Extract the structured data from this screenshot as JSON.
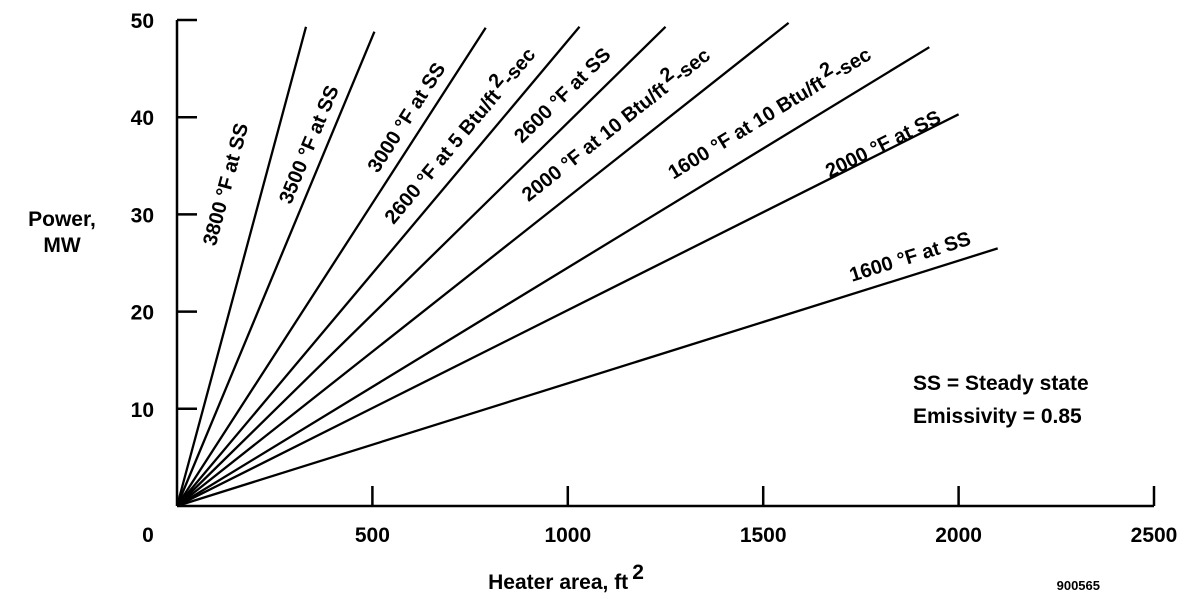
{
  "chart_data": {
    "type": "line",
    "xlabel": "Heater area, ft",
    "xlabel_sup": "2",
    "ylabel": [
      "Power,",
      "MW"
    ],
    "xlim": [
      0,
      2500
    ],
    "ylim": [
      0,
      50
    ],
    "x_ticks": [
      0,
      500,
      1000,
      1500,
      2000,
      2500
    ],
    "x_tick_labels": [
      "0",
      "500",
      "1000",
      "1500",
      "2000",
      "2500"
    ],
    "y_ticks": [
      10,
      20,
      30,
      40,
      50
    ],
    "y_tick_labels": [
      "10",
      "20",
      "30",
      "40",
      "50"
    ],
    "grid": false,
    "series": [
      {
        "name": "3800 °F at SS",
        "label_parts": [
          "3800 °F at SS"
        ],
        "x": [
          0,
          330
        ],
        "y": [
          0,
          49.3
        ]
      },
      {
        "name": "3500 °F at SS",
        "label_parts": [
          "3500 °F at SS"
        ],
        "x": [
          0,
          505
        ],
        "y": [
          0,
          48.8
        ]
      },
      {
        "name": "3000 °F at SS",
        "label_parts": [
          "3000 °F at SS"
        ],
        "x": [
          0,
          790
        ],
        "y": [
          0,
          49.2
        ]
      },
      {
        "name": "2600 °F at 5 Btu/ft2-sec",
        "label_parts": [
          "2600 °F at 5 Btu/ft",
          "2",
          "-sec"
        ],
        "x": [
          0,
          1030
        ],
        "y": [
          0,
          49.3
        ]
      },
      {
        "name": "2600 °F at SS",
        "label_parts": [
          "2600 °F at SS"
        ],
        "x": [
          0,
          1250
        ],
        "y": [
          0,
          49.3
        ]
      },
      {
        "name": "2000 °F at 10 Btu/ft2-sec",
        "label_parts": [
          "2000 °F at 10 Btu/ft",
          "2",
          "-sec"
        ],
        "x": [
          0,
          1565
        ],
        "y": [
          0,
          49.7
        ]
      },
      {
        "name": "1600 °F at 10 Btu/ft2-sec",
        "label_parts": [
          "1600 °F at 10 Btu/ft",
          "2",
          "-sec"
        ],
        "x": [
          0,
          1925
        ],
        "y": [
          0,
          47.2
        ]
      },
      {
        "name": "2000 °F at SS",
        "label_parts": [
          "2000 °F at SS"
        ],
        "x": [
          0,
          2000
        ],
        "y": [
          0,
          40.3
        ]
      },
      {
        "name": "1600 °F at SS",
        "label_parts": [
          "1600 °F at SS"
        ],
        "x": [
          0,
          2100
        ],
        "y": [
          0,
          26.5
        ]
      }
    ],
    "annotations": [
      "SS = Steady state",
      "Emissivity = 0.85"
    ],
    "figure_id": "900565"
  }
}
